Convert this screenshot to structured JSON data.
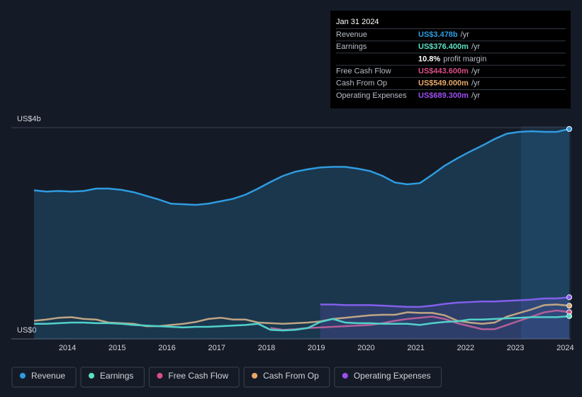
{
  "chart_data": {
    "type": "line",
    "xticks": [
      2014,
      2015,
      2016,
      2017,
      2018,
      2019,
      2020,
      2021,
      2022,
      2023,
      2024
    ],
    "xlim": [
      2013.33,
      2024.08
    ],
    "ylim": [
      0,
      3.5
    ],
    "yticks": [
      {
        "value": 0,
        "label": "US$0"
      },
      {
        "value": 3.5,
        "label": "US$4b"
      }
    ],
    "x": [
      2013.33,
      2013.58,
      2013.83,
      2014.08,
      2014.33,
      2014.58,
      2014.83,
      2015.08,
      2015.33,
      2015.58,
      2015.83,
      2016.08,
      2016.33,
      2016.58,
      2016.83,
      2017.08,
      2017.33,
      2017.58,
      2017.83,
      2018.08,
      2018.33,
      2018.58,
      2018.83,
      2019.08,
      2019.33,
      2019.58,
      2019.83,
      2020.08,
      2020.33,
      2020.58,
      2020.83,
      2021.08,
      2021.33,
      2021.58,
      2021.83,
      2022.08,
      2022.33,
      2022.58,
      2022.83,
      2023.08,
      2023.33,
      2023.58,
      2023.83,
      2024.08
    ],
    "series": [
      {
        "name": "Revenue",
        "color": "#2f9be0",
        "fill": true,
        "values": [
          2.46,
          2.44,
          2.45,
          2.44,
          2.45,
          2.49,
          2.49,
          2.47,
          2.43,
          2.37,
          2.31,
          2.24,
          2.23,
          2.22,
          2.24,
          2.28,
          2.32,
          2.39,
          2.49,
          2.6,
          2.7,
          2.77,
          2.81,
          2.84,
          2.85,
          2.85,
          2.82,
          2.78,
          2.7,
          2.59,
          2.56,
          2.58,
          2.72,
          2.87,
          2.99,
          3.1,
          3.2,
          3.31,
          3.4,
          3.43,
          3.44,
          3.43,
          3.43,
          3.478
        ]
      },
      {
        "name": "Earnings",
        "color": "#5ce0c4",
        "fill": false,
        "values": [
          0.25,
          0.25,
          0.26,
          0.27,
          0.27,
          0.26,
          0.26,
          0.25,
          0.23,
          0.22,
          0.21,
          0.2,
          0.19,
          0.2,
          0.2,
          0.21,
          0.22,
          0.23,
          0.25,
          0.15,
          0.14,
          0.15,
          0.18,
          0.28,
          0.33,
          0.27,
          0.26,
          0.26,
          0.25,
          0.25,
          0.25,
          0.23,
          0.26,
          0.28,
          0.29,
          0.32,
          0.32,
          0.33,
          0.34,
          0.35,
          0.36,
          0.36,
          0.36,
          0.3764
        ]
      },
      {
        "name": "Free Cash Flow",
        "color": "#d94f86",
        "fill": false,
        "values": [
          null,
          null,
          null,
          null,
          null,
          null,
          null,
          null,
          null,
          null,
          null,
          null,
          null,
          null,
          null,
          null,
          null,
          null,
          null,
          0.18,
          0.15,
          0.16,
          0.18,
          0.19,
          0.2,
          0.21,
          0.22,
          0.23,
          0.26,
          0.3,
          0.33,
          0.35,
          0.37,
          0.33,
          0.26,
          0.21,
          0.16,
          0.16,
          0.23,
          0.3,
          0.37,
          0.44,
          0.47,
          0.4436
        ]
      },
      {
        "name": "Cash From Op",
        "color": "#e8a86a",
        "fill": false,
        "values": [
          0.3,
          0.32,
          0.35,
          0.36,
          0.33,
          0.32,
          0.27,
          0.26,
          0.25,
          0.21,
          0.21,
          0.23,
          0.25,
          0.28,
          0.33,
          0.35,
          0.32,
          0.32,
          0.27,
          0.26,
          0.25,
          0.26,
          0.27,
          0.29,
          0.33,
          0.35,
          0.37,
          0.39,
          0.4,
          0.4,
          0.44,
          0.43,
          0.43,
          0.39,
          0.3,
          0.27,
          0.25,
          0.27,
          0.37,
          0.43,
          0.49,
          0.56,
          0.57,
          0.549
        ]
      },
      {
        "name": "Operating Expenses",
        "color": "#9b4ff0",
        "fill": true,
        "values": [
          null,
          null,
          null,
          null,
          null,
          null,
          null,
          null,
          null,
          null,
          null,
          null,
          null,
          null,
          null,
          null,
          null,
          null,
          null,
          null,
          null,
          null,
          null,
          0.57,
          0.57,
          0.56,
          0.56,
          0.56,
          0.55,
          0.54,
          0.53,
          0.53,
          0.55,
          0.58,
          0.6,
          0.61,
          0.62,
          0.62,
          0.63,
          0.64,
          0.65,
          0.67,
          0.67,
          0.6893
        ]
      }
    ],
    "tooltip": {
      "title": "Jan 31 2024",
      "rows": [
        {
          "label": "Revenue",
          "value": "US$3.478b",
          "unit": "/yr",
          "color": "#2f9be0"
        },
        {
          "label": "Earnings",
          "value": "US$376.400m",
          "unit": "/yr",
          "color": "#5ce0c4"
        },
        {
          "value": "10.8%",
          "unit": "profit margin",
          "color": "#ffffff"
        },
        {
          "label": "Free Cash Flow",
          "value": "US$443.600m",
          "unit": "/yr",
          "color": "#d94f86"
        },
        {
          "label": "Cash From Op",
          "value": "US$549.000m",
          "unit": "/yr",
          "color": "#e8a86a"
        },
        {
          "label": "Operating Expenses",
          "value": "US$689.300m",
          "unit": "/yr",
          "color": "#9b4ff0"
        }
      ]
    }
  }
}
